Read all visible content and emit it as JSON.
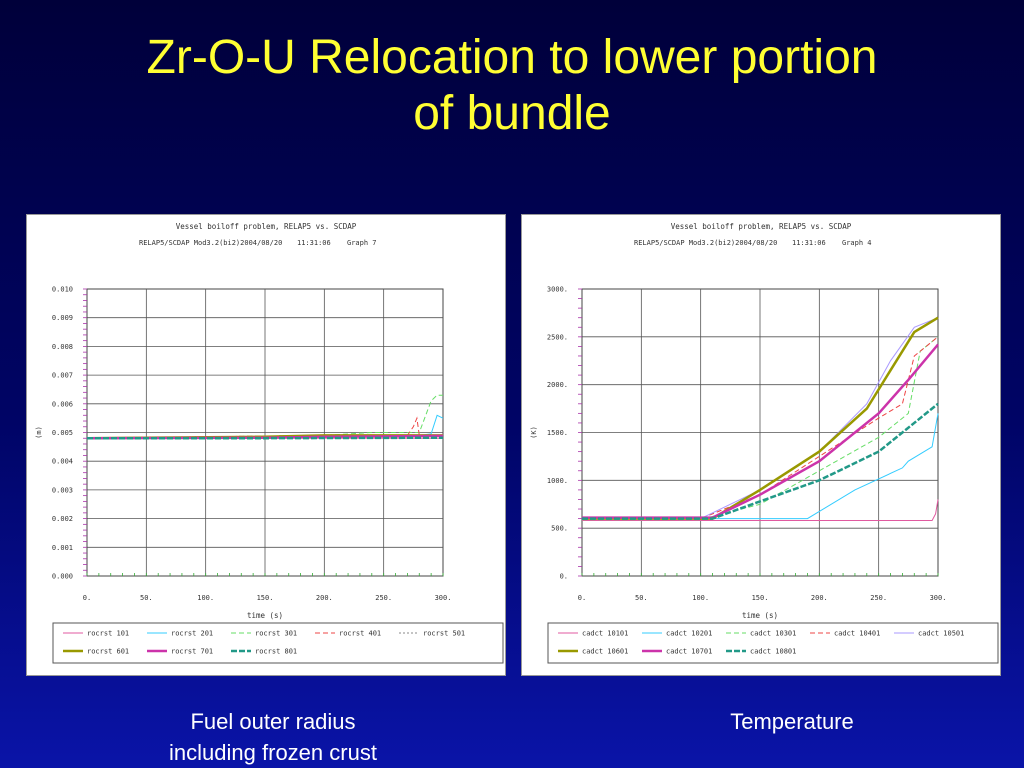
{
  "slide": {
    "title_line1": "Zr-O-U Relocation to lower portion",
    "title_line2": "of bundle",
    "caption_left_line1": "Fuel outer radius",
    "caption_left_line2": "including frozen crust",
    "caption_right": "Temperature"
  },
  "chart_data": [
    {
      "type": "line",
      "title": "Vessel boiloff problem, RELAP5 vs. SCDAP",
      "subtitle_left": "RELAP5/SCDAP Mod3.2(bi2)2004/08/20",
      "subtitle_time": "11:31:06",
      "subtitle_graph": "Graph   7",
      "xlabel": "time (s)",
      "ylabel": "(m)",
      "xlim": [
        0,
        300
      ],
      "ylim": [
        0,
        0.01
      ],
      "grid": true,
      "legend_placement": "bottom",
      "x_ticks": [
        "0.",
        "50.",
        "100.",
        "150.",
        "200.",
        "250.",
        "300."
      ],
      "y_ticks": [
        "0.000",
        "0.001",
        "0.002",
        "0.003",
        "0.004",
        "0.005",
        "0.006",
        "0.007",
        "0.008",
        "0.009",
        "0.010"
      ],
      "series": [
        {
          "name": "rocrst 101",
          "color": "#e05aa0",
          "width": 1,
          "x": [
            0,
            100,
            200,
            300
          ],
          "y": [
            0.0048,
            0.0048,
            0.0048,
            0.0048
          ]
        },
        {
          "name": "rocrst 201",
          "color": "#33ccff",
          "width": 1,
          "x": [
            0,
            200,
            260,
            280,
            290,
            295,
            300
          ],
          "y": [
            0.0048,
            0.00485,
            0.0049,
            0.0049,
            0.00495,
            0.0056,
            0.0055
          ]
        },
        {
          "name": "rocrst 301",
          "color": "#66dd66",
          "width": 1,
          "dash": "5,3",
          "x": [
            0,
            200,
            240,
            280,
            290,
            295,
            300
          ],
          "y": [
            0.0048,
            0.0049,
            0.005,
            0.005,
            0.0061,
            0.0063,
            0.0063
          ]
        },
        {
          "name": "rocrst 401",
          "color": "#ee4444",
          "width": 1,
          "dash": "5,3",
          "x": [
            0,
            200,
            270,
            275,
            278,
            280,
            300
          ],
          "y": [
            0.0048,
            0.0049,
            0.0049,
            0.0052,
            0.0055,
            0.0049,
            0.0049
          ]
        },
        {
          "name": "rocrst 501",
          "color": "#888888",
          "width": 1,
          "dash": "2,2",
          "x": [
            0,
            200,
            300
          ],
          "y": [
            0.0048,
            0.0049,
            0.0049
          ]
        },
        {
          "name": "rocrst 601",
          "color": "#999900",
          "width": 2.5,
          "x": [
            0,
            150,
            200,
            300
          ],
          "y": [
            0.0048,
            0.00485,
            0.0049,
            0.0049
          ]
        },
        {
          "name": "rocrst 701",
          "color": "#cc33aa",
          "width": 2.5,
          "x": [
            0,
            150,
            200,
            300
          ],
          "y": [
            0.0048,
            0.00482,
            0.00485,
            0.00488
          ]
        },
        {
          "name": "rocrst 801",
          "color": "#229988",
          "width": 2.5,
          "dash": "6,2",
          "x": [
            0,
            150,
            300
          ],
          "y": [
            0.0048,
            0.0048,
            0.00482
          ]
        }
      ]
    },
    {
      "type": "line",
      "title": "Vessel boiloff problem, RELAP5 vs. SCDAP",
      "subtitle_left": "RELAP5/SCDAP Mod3.2(bi2)2004/08/20",
      "subtitle_time": "11:31:06",
      "subtitle_graph": "Graph   4",
      "xlabel": "time (s)",
      "ylabel": "(K)",
      "xlim": [
        0,
        300
      ],
      "ylim": [
        0,
        3000
      ],
      "grid": true,
      "legend_placement": "bottom",
      "x_ticks": [
        "0.",
        "50.",
        "100.",
        "150.",
        "200.",
        "250.",
        "300."
      ],
      "y_ticks": [
        "0.",
        "500.",
        "1000.",
        "1500.",
        "2000.",
        "2500.",
        "3000."
      ],
      "series": [
        {
          "name": "cadct 10101",
          "color": "#e05aa0",
          "width": 1,
          "x": [
            0,
            100,
            200,
            295,
            298,
            300
          ],
          "y": [
            580,
            580,
            580,
            580,
            650,
            800
          ]
        },
        {
          "name": "cadct 10201",
          "color": "#33ccff",
          "width": 1,
          "x": [
            0,
            150,
            190,
            230,
            270,
            275,
            295,
            300
          ],
          "y": [
            600,
            600,
            600,
            900,
            1130,
            1200,
            1350,
            1700
          ]
        },
        {
          "name": "cadct 10301",
          "color": "#66dd66",
          "width": 1,
          "dash": "5,3",
          "x": [
            0,
            100,
            150,
            200,
            250,
            275,
            285,
            300
          ],
          "y": [
            590,
            590,
            750,
            1100,
            1450,
            1700,
            2350,
            2500
          ]
        },
        {
          "name": "cadct 10401",
          "color": "#ee4444",
          "width": 1,
          "dash": "5,3",
          "x": [
            0,
            100,
            150,
            200,
            250,
            270,
            280,
            300
          ],
          "y": [
            600,
            600,
            850,
            1250,
            1650,
            1800,
            2300,
            2500
          ]
        },
        {
          "name": "cadct 10501",
          "color": "#aa99ff",
          "width": 1,
          "x": [
            0,
            100,
            150,
            200,
            240,
            260,
            280,
            300
          ],
          "y": [
            600,
            600,
            900,
            1300,
            1800,
            2250,
            2600,
            2700
          ]
        },
        {
          "name": "cadct 10601",
          "color": "#999900",
          "width": 2.5,
          "x": [
            0,
            110,
            150,
            200,
            240,
            260,
            280,
            300
          ],
          "y": [
            600,
            600,
            900,
            1300,
            1750,
            2150,
            2550,
            2700
          ]
        },
        {
          "name": "cadct 10701",
          "color": "#cc33aa",
          "width": 2.5,
          "x": [
            0,
            110,
            150,
            200,
            250,
            275,
            300
          ],
          "y": [
            610,
            610,
            850,
            1200,
            1700,
            2050,
            2420
          ]
        },
        {
          "name": "cadct 10801",
          "color": "#229988",
          "width": 2.5,
          "dash": "6,2",
          "x": [
            0,
            110,
            150,
            200,
            250,
            300
          ],
          "y": [
            600,
            600,
            780,
            1000,
            1300,
            1800
          ]
        }
      ]
    }
  ]
}
